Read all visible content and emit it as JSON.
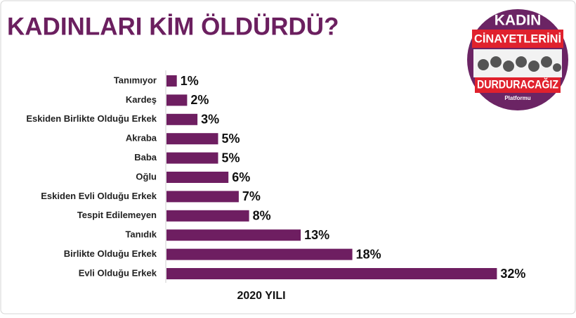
{
  "chart_data": {
    "type": "bar",
    "orientation": "horizontal",
    "title": "KADINLARI KİM ÖLDÜRDÜ?",
    "xlabel": "2020 YILI",
    "categories": [
      "Tanımıyor",
      "Kardeş",
      "Eskiden Birlikte Olduğu Erkek",
      "Akraba",
      "Baba",
      "Oğlu",
      "Eskiden Evli Olduğu Erkek",
      "Tespit Edilemeyen",
      "Tanıdık",
      "Birlikte Olduğu Erkek",
      "Evli Olduğu Erkek"
    ],
    "values": [
      1,
      2,
      3,
      5,
      5,
      6,
      7,
      8,
      13,
      18,
      32
    ],
    "value_labels": [
      "1%",
      "2%",
      "3%",
      "5%",
      "5%",
      "6%",
      "7%",
      "8%",
      "13%",
      "18%",
      "32%"
    ],
    "color": "#6e1e61"
  },
  "logo": {
    "line1": "KADIN",
    "line2": "CİNAYETLERİNİ",
    "line3": "DURDURACAĞIZ",
    "line4": "Platformu"
  }
}
